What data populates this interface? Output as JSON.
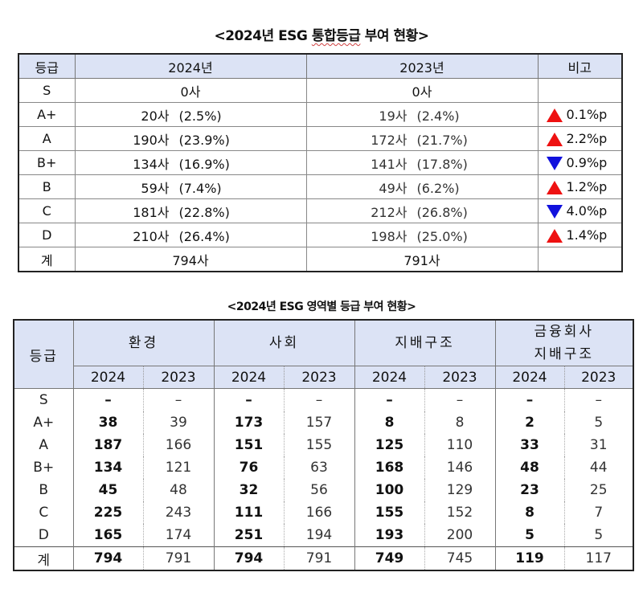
{
  "table1": {
    "title_prefix": "<2024년 ESG ",
    "title_underlined": "통합등급",
    "title_suffix": " 부여 현황>",
    "headers": [
      "등급",
      "2024년",
      "2023년",
      "비고"
    ],
    "rows": [
      {
        "grade": "S",
        "y2024_count": "0사",
        "y2024_pct": "",
        "y2023_count": "0사",
        "y2023_pct": "",
        "change_dir": "",
        "change": ""
      },
      {
        "grade": "A+",
        "y2024_count": "20사",
        "y2024_pct": "(2.5%)",
        "y2023_count": "19사",
        "y2023_pct": "(2.4%)",
        "change_dir": "up",
        "change": "0.1%p"
      },
      {
        "grade": "A",
        "y2024_count": "190사",
        "y2024_pct": "(23.9%)",
        "y2023_count": "172사",
        "y2023_pct": "(21.7%)",
        "change_dir": "up",
        "change": "2.2%p"
      },
      {
        "grade": "B+",
        "y2024_count": "134사",
        "y2024_pct": "(16.9%)",
        "y2023_count": "141사",
        "y2023_pct": "(17.8%)",
        "change_dir": "down",
        "change": "0.9%p"
      },
      {
        "grade": "B",
        "y2024_count": "59사",
        "y2024_pct": "(7.4%)",
        "y2023_count": "49사",
        "y2023_pct": "(6.2%)",
        "change_dir": "up",
        "change": "1.2%p"
      },
      {
        "grade": "C",
        "y2024_count": "181사",
        "y2024_pct": "(22.8%)",
        "y2023_count": "212사",
        "y2023_pct": "(26.8%)",
        "change_dir": "down",
        "change": "4.0%p"
      },
      {
        "grade": "D",
        "y2024_count": "210사",
        "y2024_pct": "(26.4%)",
        "y2023_count": "198사",
        "y2023_pct": "(25.0%)",
        "change_dir": "up",
        "change": "1.4%p"
      }
    ],
    "total": {
      "grade": "계",
      "y2024": "794사",
      "y2023": "791사",
      "change": ""
    },
    "colors": {
      "header_bg": "#dce3f5",
      "up": "#ee1111",
      "down": "#1111dd"
    }
  },
  "table2": {
    "title": "<2024년 ESG 영역별 등급 부여 현황>",
    "grade_header": "등급",
    "groups": [
      {
        "label_line1": "환경",
        "label_line2": ""
      },
      {
        "label_line1": "사회",
        "label_line2": ""
      },
      {
        "label_line1": "지배구조",
        "label_line2": ""
      },
      {
        "label_line1": "금융회사",
        "label_line2": "지배구조"
      }
    ],
    "year_labels": [
      "2024",
      "2023"
    ],
    "rows": [
      {
        "grade": "S",
        "values": [
          "–",
          "–",
          "–",
          "–",
          "–",
          "–",
          "–",
          "–"
        ]
      },
      {
        "grade": "A+",
        "values": [
          "38",
          "39",
          "173",
          "157",
          "8",
          "8",
          "2",
          "5"
        ]
      },
      {
        "grade": "A",
        "values": [
          "187",
          "166",
          "151",
          "155",
          "125",
          "110",
          "33",
          "31"
        ]
      },
      {
        "grade": "B+",
        "values": [
          "134",
          "121",
          "76",
          "63",
          "168",
          "146",
          "48",
          "44"
        ]
      },
      {
        "grade": "B",
        "values": [
          "45",
          "48",
          "32",
          "56",
          "100",
          "129",
          "23",
          "25"
        ]
      },
      {
        "grade": "C",
        "values": [
          "225",
          "243",
          "111",
          "166",
          "155",
          "152",
          "8",
          "7"
        ]
      },
      {
        "grade": "D",
        "values": [
          "165",
          "174",
          "251",
          "194",
          "193",
          "200",
          "5",
          "5"
        ]
      }
    ],
    "total": {
      "grade": "계",
      "values": [
        "794",
        "791",
        "794",
        "791",
        "749",
        "745",
        "119",
        "117"
      ]
    }
  }
}
